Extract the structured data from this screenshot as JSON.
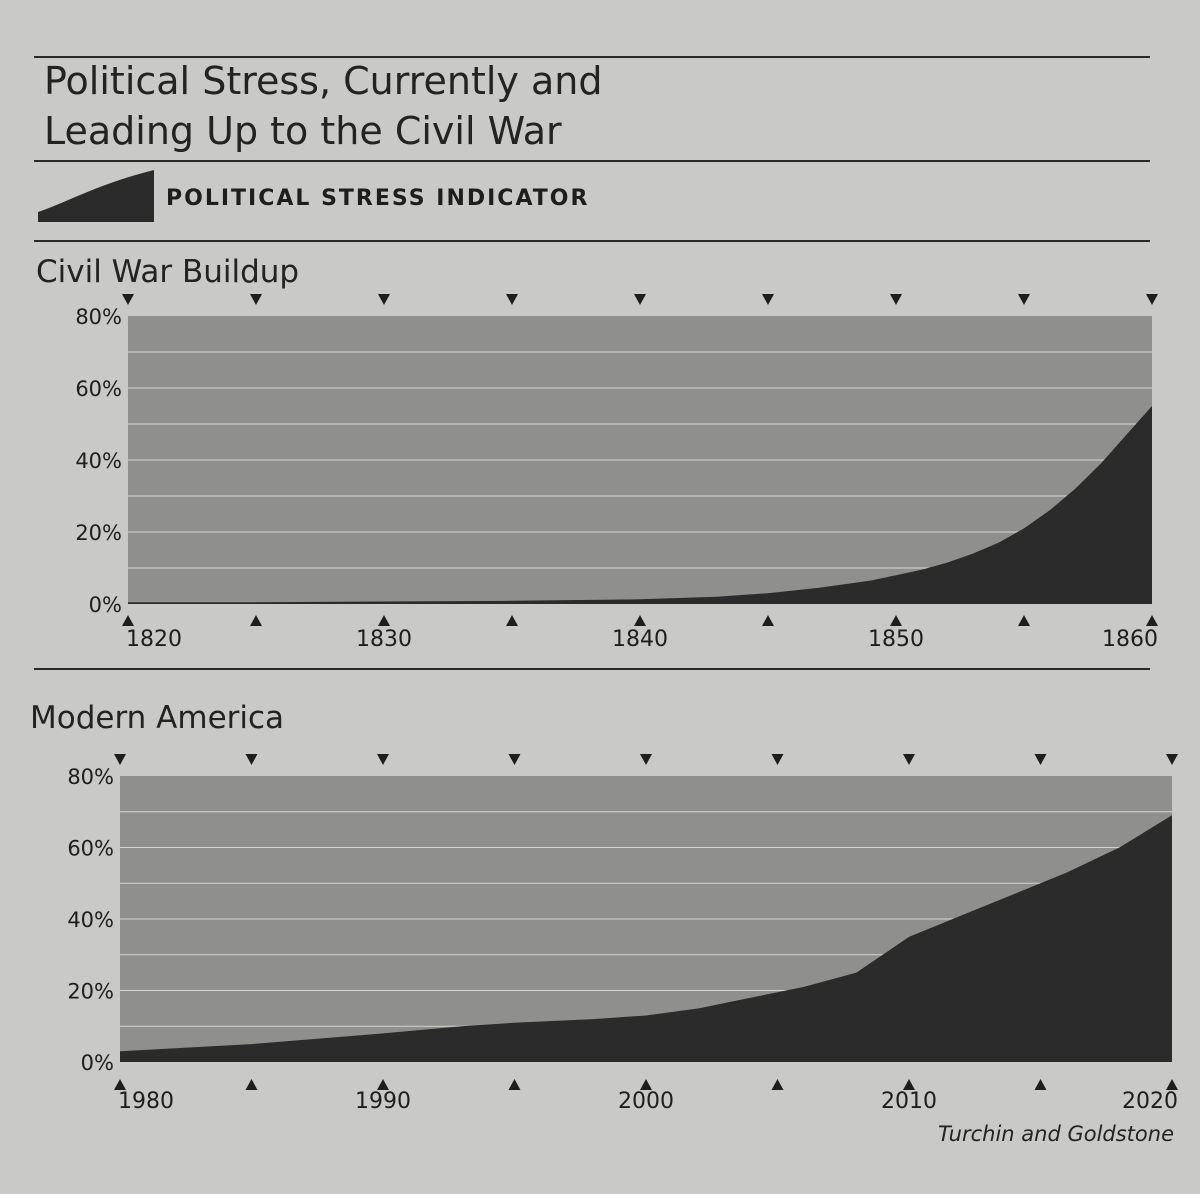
{
  "title": {
    "line1": "Political Stress, Currently and",
    "line2": "Leading Up to the Civil War"
  },
  "legend": {
    "label": "POLITICAL STRESS INDICATOR"
  },
  "source": "Turchin and Goldstone",
  "colors": {
    "background": "#c9c9c7",
    "plot_area": "#8f8f8d",
    "fill": "#2b2b2b",
    "text": "#1e1e1e"
  },
  "chart_data": [
    {
      "type": "area",
      "title": "Civil War Buildup",
      "series": [
        {
          "name": "POLITICAL STRESS INDICATOR",
          "x": [
            1820,
            1825,
            1830,
            1835,
            1840,
            1843,
            1845,
            1847,
            1849,
            1850,
            1851,
            1852,
            1853,
            1854,
            1855,
            1856,
            1857,
            1858,
            1859,
            1860
          ],
          "values": [
            0.5,
            0.5,
            0.7,
            0.9,
            1.3,
            2,
            3,
            4.5,
            6.5,
            8,
            9.5,
            11.5,
            14,
            17,
            21,
            26,
            32,
            39,
            47,
            55
          ]
        }
      ],
      "xticks": [
        1820,
        1830,
        1840,
        1850,
        1860
      ],
      "ytick_labels": [
        "0%",
        "20%",
        "40%",
        "60%",
        "80%"
      ],
      "xlim": [
        1820,
        1860
      ],
      "ylim": [
        0,
        80
      ],
      "xlabel": "",
      "ylabel": ""
    },
    {
      "type": "area",
      "title": "Modern America",
      "series": [
        {
          "name": "POLITICAL STRESS INDICATOR",
          "x": [
            1980,
            1985,
            1990,
            1993,
            1995,
            1998,
            2000,
            2002,
            2004,
            2006,
            2008,
            2009,
            2010,
            2012,
            2014,
            2016,
            2018,
            2020
          ],
          "values": [
            3,
            5,
            8,
            10,
            11,
            12,
            13,
            15,
            18,
            21,
            25,
            30,
            35,
            41,
            47,
            53,
            60,
            69
          ]
        }
      ],
      "xticks": [
        1980,
        1990,
        2000,
        2010,
        2020
      ],
      "ytick_labels": [
        "0%",
        "20%",
        "40%",
        "60%",
        "80%"
      ],
      "xlim": [
        1980,
        2020
      ],
      "ylim": [
        0,
        80
      ],
      "xlabel": "",
      "ylabel": ""
    }
  ]
}
